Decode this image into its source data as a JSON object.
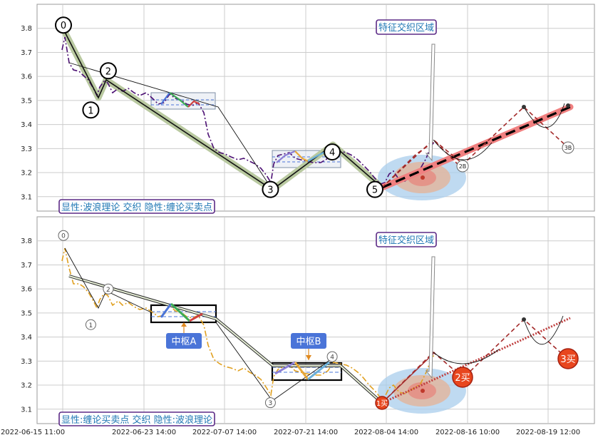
{
  "chart_data": [
    {
      "type": "line",
      "panel": "top",
      "ylim": [
        3.04,
        3.9
      ],
      "yticks": [
        "3.8",
        "3.7",
        "3.6",
        "3.5",
        "3.4",
        "3.3",
        "3.2",
        "3.1"
      ],
      "grid": true,
      "wave_points": [
        {
          "label": "0",
          "x": 0.8,
          "y": 3.76
        },
        {
          "label": "1",
          "x": 4.3,
          "y": 3.49
        },
        {
          "label": "2",
          "x": 5.5,
          "y": 3.57
        },
        {
          "label": "3",
          "x": 26.6,
          "y": 3.13
        },
        {
          "label": "4",
          "x": 34.3,
          "y": 3.28
        },
        {
          "label": "5",
          "x": 39.8,
          "y": 3.13
        }
      ],
      "future_points": [
        {
          "label": "2B",
          "x": 49.0,
          "y": 3.22
        },
        {
          "label": "3B",
          "x": 61.0,
          "y": 3.29
        }
      ],
      "annotation": "特征交织区域",
      "legend_text": "显性:波浪理论 交织 隐性:缠论买卖点",
      "colors": {
        "trend": "#b9c9a0",
        "main": "#000000",
        "price": "#4b0f73",
        "forecast": "#f08080",
        "zone": "#a9cdec",
        "box_border": "#5b2a86",
        "box_text": "#1f77b4"
      }
    },
    {
      "type": "line",
      "panel": "bottom",
      "ylim": [
        3.04,
        3.9
      ],
      "yticks": [
        "3.8",
        "3.7",
        "3.6",
        "3.5",
        "3.4",
        "3.3",
        "3.2",
        "3.1"
      ],
      "xticks": [
        "2022-06-15 11:00",
        "2022-06-23 14:00",
        "2022-07-07 14:00",
        "2022-07-21 14:00",
        "2022-08-04 14:00",
        "2022-08-16 10:00",
        "2022-08-19 12:00"
      ],
      "grid": true,
      "wave_points": [
        {
          "label": "0",
          "x": 0.8,
          "y": 3.76
        },
        {
          "label": "1",
          "x": 4.3,
          "y": 3.49
        },
        {
          "label": "2",
          "x": 5.5,
          "y": 3.57
        },
        {
          "label": "3",
          "x": 26.6,
          "y": 3.13
        },
        {
          "label": "4",
          "x": 34.3,
          "y": 3.28
        },
        {
          "label": "5",
          "x": 39.8,
          "y": 3.13
        }
      ],
      "centers": [
        "中枢A",
        "中枢B"
      ],
      "buy_points": [
        "1买",
        "2买",
        "3买"
      ],
      "annotation": "特征交织区域",
      "legend_text": "显性:缠论买卖点 交织 隐性:波浪理论",
      "colors": {
        "price": "#e0a020",
        "stroke_line": "#000000",
        "center_box": "#000000",
        "center_label_bg": "#4a74d8",
        "buy_point": "#e8461e",
        "zone": "#a9cdec"
      }
    }
  ]
}
